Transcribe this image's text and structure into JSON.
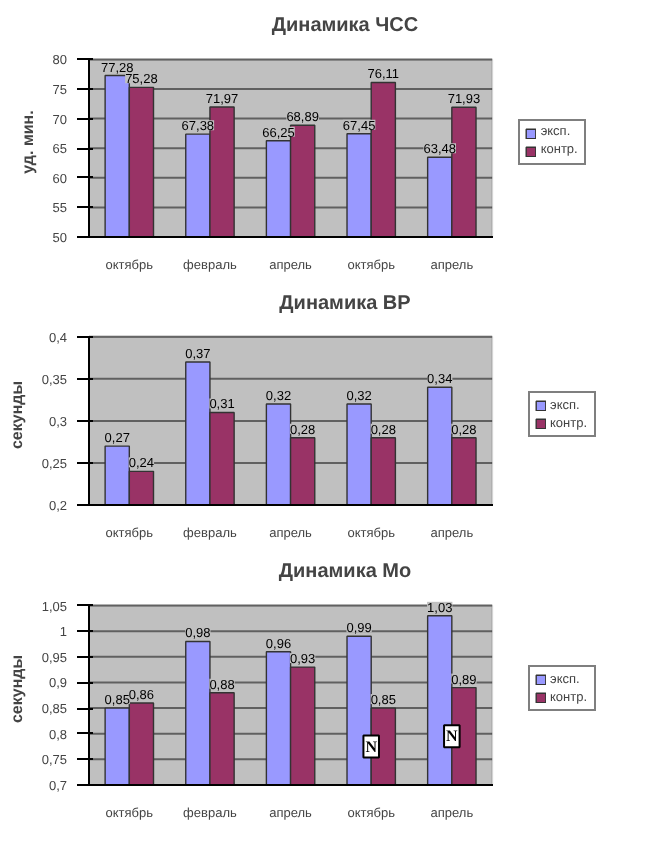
{
  "chart_data": [
    {
      "type": "bar",
      "title": "Динамика ЧСС",
      "ylabel": "уд. мин.",
      "categories": [
        "октябрь",
        "февраль",
        "апрель",
        "октябрь",
        "апрель"
      ],
      "series": [
        {
          "name": "эксп.",
          "color": "#9999ff",
          "values": [
            77.28,
            67.38,
            66.25,
            67.45,
            63.48
          ],
          "value_labels": [
            "77,28",
            "67,38",
            "66,25",
            "67,45",
            "63,48"
          ]
        },
        {
          "name": "контр.",
          "color": "#993366",
          "values": [
            75.28,
            71.97,
            68.89,
            76.11,
            71.93
          ],
          "value_labels": [
            "75,28",
            "71,97",
            "68,89",
            "76,11",
            "71,93"
          ]
        }
      ],
      "ylim": [
        50,
        80
      ],
      "yticks": [
        50,
        55,
        60,
        65,
        70,
        75,
        80
      ],
      "grid": "y",
      "legend": "right"
    },
    {
      "type": "bar",
      "title": "Динамика ВР",
      "ylabel": "секунды",
      "categories": [
        "октябрь",
        "февраль",
        "апрель",
        "октябрь",
        "апрель"
      ],
      "series": [
        {
          "name": "эксп.",
          "color": "#9999ff",
          "values": [
            0.27,
            0.37,
            0.32,
            0.32,
            0.34
          ],
          "value_labels": [
            "0,27",
            "0,37",
            "0,32",
            "0,32",
            "0,34"
          ]
        },
        {
          "name": "контр.",
          "color": "#993366",
          "values": [
            0.24,
            0.31,
            0.28,
            0.28,
            0.28
          ],
          "value_labels": [
            "0,24",
            "0,31",
            "0,28",
            "0,28",
            "0,28"
          ]
        }
      ],
      "ylim": [
        0.2,
        0.4
      ],
      "yticks": [
        {
          "value": 0.2,
          "label": "0,2"
        },
        {
          "value": 0.25,
          "label": "0,25"
        },
        {
          "value": 0.3,
          "label": "0,3"
        },
        {
          "value": 0.35,
          "label": "0,35"
        },
        {
          "value": 0.4,
          "label": "0,4"
        }
      ],
      "grid": "y",
      "legend": "right"
    },
    {
      "type": "bar",
      "title": "Динамика Мо",
      "ylabel": "секунды",
      "categories": [
        "октябрь",
        "февраль",
        "апрель",
        "октябрь",
        "апрель"
      ],
      "series": [
        {
          "name": "эксп.",
          "color": "#9999ff",
          "values": [
            0.85,
            0.98,
            0.96,
            0.99,
            1.03
          ],
          "value_labels": [
            "0,85",
            "0,98",
            "0,96",
            "0,99",
            "1,03"
          ]
        },
        {
          "name": "контр.",
          "color": "#993366",
          "values": [
            0.86,
            0.88,
            0.93,
            0.85,
            0.89
          ],
          "value_labels": [
            "0,86",
            "0,88",
            "0,93",
            "0,85",
            "0,89"
          ]
        }
      ],
      "ylim": [
        0.7,
        1.05
      ],
      "yticks": [
        {
          "value": 0.7,
          "label": "0,7"
        },
        {
          "value": 0.75,
          "label": "0,75"
        },
        {
          "value": 0.8,
          "label": "0,8"
        },
        {
          "value": 0.85,
          "label": "0,85"
        },
        {
          "value": 0.9,
          "label": "0,9"
        },
        {
          "value": 0.95,
          "label": "0,95"
        },
        {
          "value": 1,
          "label": "1"
        },
        {
          "value": 1.05,
          "label": "1,05"
        }
      ],
      "grid": "y",
      "legend": "right",
      "annotations": [
        "N",
        "N"
      ]
    }
  ]
}
